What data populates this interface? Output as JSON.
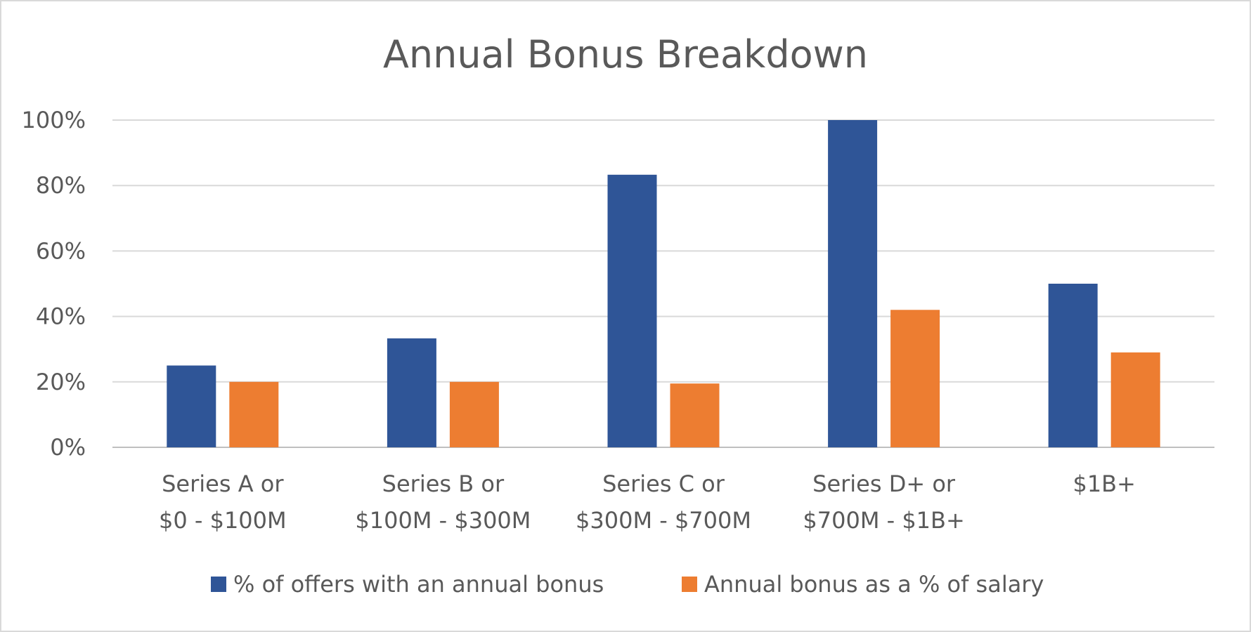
{
  "chart_data": {
    "type": "bar",
    "title": "Annual Bonus Breakdown",
    "xlabel": "",
    "ylabel": "",
    "ylim": [
      0,
      100
    ],
    "y_ticks": [
      "0%",
      "20%",
      "40%",
      "60%",
      "80%",
      "100%"
    ],
    "y_tick_values": [
      0,
      20,
      40,
      60,
      80,
      100
    ],
    "grid": true,
    "legend": "bottom",
    "categories": [
      [
        "Series A or",
        "$0 - $100M"
      ],
      [
        "Series B or",
        "$100M - $300M"
      ],
      [
        "Series C or",
        "$300M - $700M"
      ],
      [
        "Series D+ or",
        "$700M - $1B+"
      ],
      [
        "$1B+"
      ]
    ],
    "series": [
      {
        "name": "% of offers with an annual bonus",
        "color": "#2f5597",
        "values": [
          25,
          33.3,
          83.3,
          100,
          50
        ]
      },
      {
        "name": "Annual bonus as a % of salary",
        "color": "#ed7d31",
        "values": [
          20,
          20,
          19.5,
          42,
          29
        ]
      }
    ]
  },
  "colors": {
    "text": "#595959",
    "gridline": "#d9d9d9",
    "axis": "#bfbfbf"
  }
}
